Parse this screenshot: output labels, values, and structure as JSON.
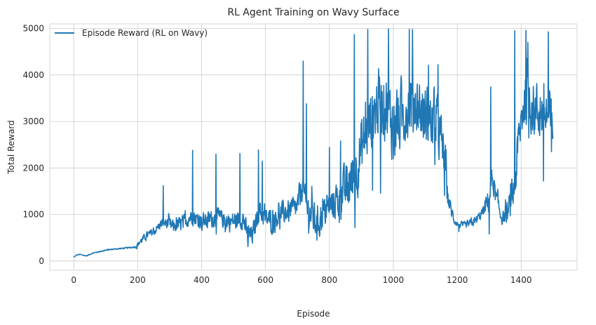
{
  "chart_data": {
    "type": "line",
    "title": "RL Agent Training on Wavy Surface",
    "xlabel": "Episode",
    "ylabel": "Total Reward",
    "xlim": [
      -75,
      1575
    ],
    "ylim": [
      -200,
      5100
    ],
    "xticks": [
      0,
      200,
      400,
      600,
      800,
      1000,
      1200,
      1400
    ],
    "yticks": [
      0,
      1000,
      2000,
      3000,
      4000,
      5000
    ],
    "grid": true,
    "legend_position": "top-left",
    "series": [
      {
        "name": "Episode Reward (RL on Wavy)",
        "color": "#1f77b4",
        "trend": [
          [
            0,
            80
          ],
          [
            10,
            130
          ],
          [
            20,
            140
          ],
          [
            30,
            120
          ],
          [
            40,
            110
          ],
          [
            50,
            140
          ],
          [
            60,
            170
          ],
          [
            80,
            200
          ],
          [
            100,
            230
          ],
          [
            120,
            250
          ],
          [
            150,
            270
          ],
          [
            180,
            290
          ],
          [
            195,
            310
          ],
          [
            210,
            430
          ],
          [
            230,
            560
          ],
          [
            250,
            620
          ],
          [
            270,
            780
          ],
          [
            290,
            820
          ],
          [
            310,
            740
          ],
          [
            330,
            780
          ],
          [
            350,
            860
          ],
          [
            370,
            980
          ],
          [
            390,
            880
          ],
          [
            410,
            860
          ],
          [
            430,
            900
          ],
          [
            450,
            930
          ],
          [
            470,
            880
          ],
          [
            490,
            840
          ],
          [
            510,
            880
          ],
          [
            530,
            920
          ],
          [
            545,
            520
          ],
          [
            560,
            560
          ],
          [
            580,
            1120
          ],
          [
            600,
            900
          ],
          [
            620,
            900
          ],
          [
            640,
            980
          ],
          [
            660,
            1050
          ],
          [
            680,
            1080
          ],
          [
            700,
            1150
          ],
          [
            715,
            1650
          ],
          [
            725,
            1200
          ],
          [
            740,
            1050
          ],
          [
            760,
            820
          ],
          [
            780,
            1000
          ],
          [
            800,
            1180
          ],
          [
            820,
            1280
          ],
          [
            840,
            1450
          ],
          [
            860,
            1600
          ],
          [
            880,
            1900
          ],
          [
            900,
            2400
          ],
          [
            920,
            2900
          ],
          [
            940,
            3200
          ],
          [
            960,
            3500
          ],
          [
            980,
            3300
          ],
          [
            1000,
            2900
          ],
          [
            1020,
            3000
          ],
          [
            1040,
            3300
          ],
          [
            1060,
            3500
          ],
          [
            1080,
            3300
          ],
          [
            1100,
            3100
          ],
          [
            1120,
            3000
          ],
          [
            1140,
            2900
          ],
          [
            1160,
            2200
          ],
          [
            1170,
            1400
          ],
          [
            1180,
            1100
          ],
          [
            1190,
            900
          ],
          [
            1200,
            800
          ],
          [
            1220,
            760
          ],
          [
            1240,
            800
          ],
          [
            1260,
            880
          ],
          [
            1280,
            1050
          ],
          [
            1300,
            1350
          ],
          [
            1310,
            1800
          ],
          [
            1320,
            1400
          ],
          [
            1340,
            900
          ],
          [
            1360,
            1050
          ],
          [
            1380,
            1600
          ],
          [
            1390,
            2400
          ],
          [
            1400,
            3000
          ],
          [
            1410,
            3500
          ],
          [
            1420,
            3600
          ],
          [
            1440,
            3300
          ],
          [
            1460,
            3200
          ],
          [
            1480,
            3100
          ],
          [
            1499,
            3000
          ]
        ],
        "amplitude": [
          [
            0,
            10
          ],
          [
            190,
            20
          ],
          [
            200,
            80
          ],
          [
            280,
            140
          ],
          [
            300,
            200
          ],
          [
            500,
            280
          ],
          [
            700,
            350
          ],
          [
            720,
            500
          ],
          [
            800,
            450
          ],
          [
            850,
            700
          ],
          [
            900,
            900
          ],
          [
            1000,
            1000
          ],
          [
            1150,
            800
          ],
          [
            1170,
            300
          ],
          [
            1200,
            80
          ],
          [
            1280,
            150
          ],
          [
            1300,
            400
          ],
          [
            1340,
            150
          ],
          [
            1380,
            600
          ],
          [
            1420,
            900
          ],
          [
            1499,
            800
          ]
        ],
        "spikes": [
          [
            280,
            1620
          ],
          [
            372,
            2380
          ],
          [
            445,
            2300
          ],
          [
            520,
            2310
          ],
          [
            578,
            2390
          ],
          [
            590,
            2150
          ],
          [
            718,
            4300
          ],
          [
            728,
            3380
          ],
          [
            800,
            2440
          ],
          [
            835,
            2580
          ],
          [
            878,
            4870
          ],
          [
            920,
            4980
          ],
          [
            960,
            5000
          ],
          [
            985,
            4990
          ],
          [
            1050,
            4980
          ],
          [
            1060,
            4980
          ],
          [
            1110,
            4210
          ],
          [
            1140,
            4220
          ],
          [
            1165,
            2400
          ],
          [
            1305,
            3740
          ],
          [
            1380,
            4950
          ],
          [
            1415,
            4960
          ],
          [
            1470,
            4110
          ],
          [
            1485,
            4930
          ],
          [
            1495,
            4870
          ]
        ],
        "dips": [
          [
            545,
            310
          ],
          [
            755,
            650
          ],
          [
            880,
            720
          ],
          [
            935,
            1520
          ],
          [
            960,
            1460
          ],
          [
            1000,
            2200
          ],
          [
            1160,
            1410
          ],
          [
            1205,
            630
          ],
          [
            1300,
            580
          ],
          [
            1470,
            1720
          ],
          [
            1495,
            2350
          ]
        ]
      }
    ]
  }
}
